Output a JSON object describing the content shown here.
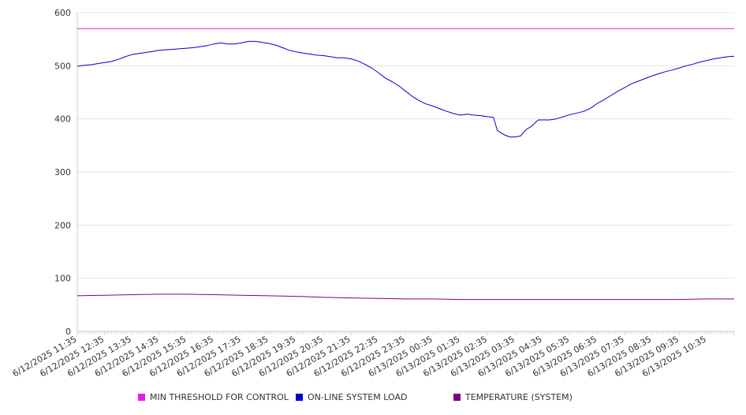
{
  "chart_data": {
    "type": "line",
    "title": "",
    "xlabel": "",
    "ylabel": "",
    "ylim": [
      0,
      600
    ],
    "yticks": [
      0,
      100,
      200,
      300,
      400,
      500,
      600
    ],
    "xticks": [
      "6/12/2025 11:35",
      "6/12/2025 12:35",
      "6/12/2025 13:35",
      "6/12/2025 14:35",
      "6/12/2025 15:35",
      "6/12/2025 16:35",
      "6/12/2025 17:35",
      "6/12/2025 18:35",
      "6/12/2025 19:35",
      "6/12/2025 20:35",
      "6/12/2025 21:35",
      "6/12/2025 22:35",
      "6/12/2025 23:35",
      "6/13/2025 00:35",
      "6/13/2025 01:35",
      "6/13/2025 02:35",
      "6/13/2025 03:35",
      "6/13/2025 04:35",
      "6/13/2025 05:35",
      "6/13/2025 06:35",
      "6/13/2025 07:35",
      "6/13/2025 08:35",
      "6/13/2025 09:35",
      "6/13/2025 10:35"
    ],
    "grid": true,
    "legend_position": "bottom",
    "series": [
      {
        "name": "MIN THRESHOLD FOR CONTROL",
        "color": "#e020e0",
        "points": [
          [
            0,
            570
          ],
          [
            24,
            570
          ]
        ]
      },
      {
        "name": "ON-LINE SYSTEM LOAD",
        "color": "#0000cc",
        "points": [
          [
            0,
            499
          ],
          [
            0.25,
            501
          ],
          [
            0.5,
            502
          ],
          [
            0.75,
            504
          ],
          [
            1,
            506
          ],
          [
            1.25,
            508
          ],
          [
            1.5,
            512
          ],
          [
            1.75,
            517
          ],
          [
            2,
            521
          ],
          [
            2.25,
            523
          ],
          [
            2.5,
            525
          ],
          [
            2.75,
            527
          ],
          [
            3,
            529
          ],
          [
            3.25,
            530
          ],
          [
            3.5,
            531
          ],
          [
            3.75,
            532
          ],
          [
            4,
            533
          ],
          [
            4.25,
            534
          ],
          [
            4.5,
            536
          ],
          [
            4.75,
            538
          ],
          [
            5,
            541
          ],
          [
            5.25,
            543
          ],
          [
            5.5,
            541
          ],
          [
            5.75,
            541
          ],
          [
            6,
            543
          ],
          [
            6.25,
            546
          ],
          [
            6.5,
            546
          ],
          [
            6.75,
            544
          ],
          [
            7,
            542
          ],
          [
            7.25,
            539
          ],
          [
            7.5,
            534
          ],
          [
            7.75,
            529
          ],
          [
            8,
            526
          ],
          [
            8.25,
            524
          ],
          [
            8.5,
            522
          ],
          [
            8.75,
            520
          ],
          [
            9,
            519
          ],
          [
            9.25,
            517
          ],
          [
            9.5,
            515
          ],
          [
            9.75,
            515
          ],
          [
            10,
            513
          ],
          [
            10.25,
            509
          ],
          [
            10.5,
            503
          ],
          [
            10.75,
            496
          ],
          [
            11,
            487
          ],
          [
            11.25,
            477
          ],
          [
            11.5,
            470
          ],
          [
            11.75,
            462
          ],
          [
            12,
            452
          ],
          [
            12.25,
            442
          ],
          [
            12.5,
            434
          ],
          [
            12.75,
            428
          ],
          [
            13,
            424
          ],
          [
            13.25,
            419
          ],
          [
            13.5,
            414
          ],
          [
            13.75,
            410
          ],
          [
            14,
            407
          ],
          [
            14.25,
            409
          ],
          [
            14.5,
            407
          ],
          [
            14.75,
            406
          ],
          [
            15,
            404
          ],
          [
            15.2,
            403
          ],
          [
            15.35,
            378
          ],
          [
            15.6,
            370
          ],
          [
            15.8,
            366
          ],
          [
            16,
            366
          ],
          [
            16.2,
            368
          ],
          [
            16.4,
            380
          ],
          [
            16.6,
            386
          ],
          [
            16.75,
            394
          ],
          [
            16.85,
            398
          ],
          [
            17,
            398
          ],
          [
            17.25,
            398
          ],
          [
            17.5,
            400
          ],
          [
            17.75,
            404
          ],
          [
            18,
            408
          ],
          [
            18.25,
            411
          ],
          [
            18.5,
            414
          ],
          [
            18.75,
            420
          ],
          [
            19,
            429
          ],
          [
            19.25,
            436
          ],
          [
            19.5,
            444
          ],
          [
            19.75,
            452
          ],
          [
            20,
            459
          ],
          [
            20.25,
            466
          ],
          [
            20.5,
            471
          ],
          [
            20.75,
            476
          ],
          [
            21,
            481
          ],
          [
            21.25,
            485
          ],
          [
            21.5,
            489
          ],
          [
            21.75,
            492
          ],
          [
            22,
            496
          ],
          [
            22.25,
            500
          ],
          [
            22.5,
            503
          ],
          [
            22.75,
            507
          ],
          [
            23,
            510
          ],
          [
            23.25,
            513
          ],
          [
            23.5,
            515
          ],
          [
            23.75,
            517
          ],
          [
            24,
            518
          ]
        ]
      },
      {
        "name": "TEMPERATURE (SYSTEM)",
        "color": "#800080",
        "points": [
          [
            0,
            67
          ],
          [
            1,
            68
          ],
          [
            2,
            69
          ],
          [
            3,
            70
          ],
          [
            4,
            70
          ],
          [
            5,
            69
          ],
          [
            6,
            68
          ],
          [
            7,
            67
          ],
          [
            8,
            66
          ],
          [
            9,
            64
          ],
          [
            10,
            63
          ],
          [
            11,
            62
          ],
          [
            12,
            61
          ],
          [
            13,
            61
          ],
          [
            14,
            60
          ],
          [
            15,
            60
          ],
          [
            16,
            60
          ],
          [
            17,
            60
          ],
          [
            18,
            60
          ],
          [
            19,
            60
          ],
          [
            20,
            60
          ],
          [
            21,
            60
          ],
          [
            22,
            60
          ],
          [
            23,
            61
          ],
          [
            24,
            61
          ]
        ]
      }
    ]
  }
}
